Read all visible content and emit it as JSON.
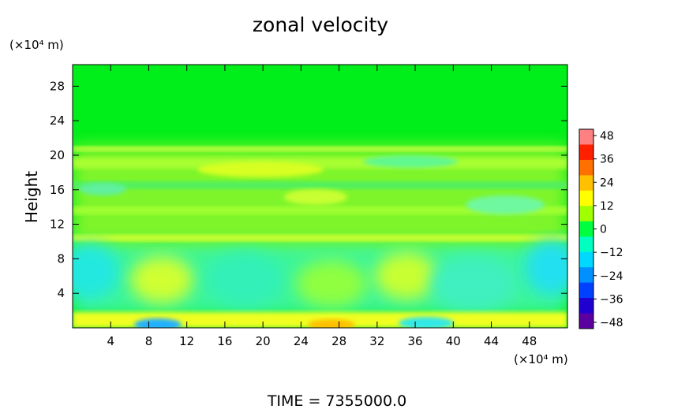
{
  "chart_data": {
    "type": "heatmap",
    "title": "zonal velocity",
    "ylabel": "Height",
    "y_unit_label": "(×10⁴ m)",
    "x_unit_label": "(×10⁴ m)",
    "footer": "TIME  =  7355000.0",
    "xlim": [
      0,
      52
    ],
    "ylim": [
      0,
      30.5
    ],
    "x_ticks": [
      4,
      8,
      12,
      16,
      20,
      24,
      28,
      32,
      36,
      40,
      44,
      48
    ],
    "y_ticks": [
      4,
      8,
      12,
      16,
      20,
      24,
      28
    ],
    "colorbar": {
      "range": [
        -48,
        48
      ],
      "tick_values": [
        48,
        36,
        24,
        12,
        0,
        -12,
        -24,
        -36,
        -48
      ],
      "tick_labels": [
        "48",
        "36",
        "24",
        "12",
        "0",
        "−12",
        "−24",
        "−36",
        "−48"
      ],
      "colors": [
        "#5a00a0",
        "#2000d0",
        "#0040ff",
        "#0090ff",
        "#00d8ff",
        "#00ffc0",
        "#00ff40",
        "#a0ff00",
        "#ffff00",
        "#ffc000",
        "#ff7000",
        "#ff2000",
        "#ff8080"
      ]
    },
    "field_description_values": [
      {
        "y": 1,
        "value": 8
      },
      {
        "y": 7,
        "value": -8
      },
      {
        "y": 10,
        "value": 6
      },
      {
        "y": 14,
        "value": 3
      },
      {
        "y": 18,
        "value": 6
      },
      {
        "y": 20,
        "value": 4
      },
      {
        "y": 25,
        "value": 0
      }
    ]
  }
}
